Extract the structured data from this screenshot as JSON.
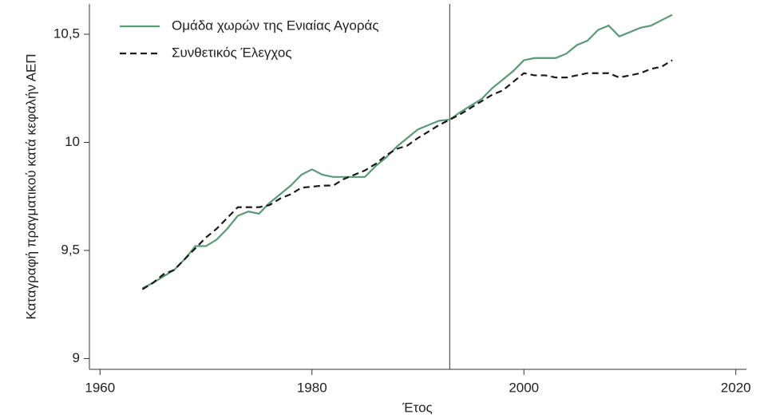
{
  "chart_data": {
    "type": "line",
    "ylabel": "Καταγραφή πραγματικού κατά κεφαλήν ΑΕΠ",
    "xlabel": "Έτος",
    "x": [
      1964,
      1965,
      1966,
      1967,
      1968,
      1969,
      1970,
      1971,
      1972,
      1973,
      1974,
      1975,
      1976,
      1977,
      1978,
      1979,
      1980,
      1981,
      1982,
      1983,
      1984,
      1985,
      1986,
      1987,
      1988,
      1989,
      1990,
      1991,
      1992,
      1993,
      1994,
      1995,
      1996,
      1997,
      1998,
      1999,
      2000,
      2001,
      2002,
      2003,
      2004,
      2005,
      2006,
      2007,
      2008,
      2009,
      2010,
      2011,
      2012,
      2013,
      2014
    ],
    "series": [
      {
        "name": "Ομάδα χωρών της Ενιαίας Αγοράς",
        "color": "#5a9a78",
        "style": "solid",
        "values": [
          9.325,
          9.35,
          9.38,
          9.41,
          9.46,
          9.52,
          9.52,
          9.55,
          9.6,
          9.66,
          9.68,
          9.67,
          9.72,
          9.76,
          9.8,
          9.85,
          9.875,
          9.85,
          9.84,
          9.84,
          9.84,
          9.84,
          9.89,
          9.93,
          9.98,
          10.02,
          10.06,
          10.08,
          10.1,
          10.105,
          10.14,
          10.17,
          10.2,
          10.25,
          10.29,
          10.33,
          10.38,
          10.39,
          10.39,
          10.39,
          10.41,
          10.45,
          10.47,
          10.52,
          10.54,
          10.49,
          10.51,
          10.53,
          10.54,
          10.565,
          10.59
        ]
      },
      {
        "name": "Συνθετικός Έλεγχος",
        "color": "#1a1a1a",
        "style": "dashed",
        "values": [
          9.32,
          9.35,
          9.39,
          9.41,
          9.46,
          9.51,
          9.56,
          9.6,
          9.65,
          9.7,
          9.7,
          9.7,
          9.71,
          9.74,
          9.76,
          9.79,
          9.795,
          9.8,
          9.8,
          9.83,
          9.85,
          9.87,
          9.9,
          9.94,
          9.97,
          9.985,
          10.02,
          10.05,
          10.08,
          10.105,
          10.13,
          10.16,
          10.19,
          10.22,
          10.24,
          10.28,
          10.32,
          10.31,
          10.31,
          10.3,
          10.3,
          10.31,
          10.32,
          10.32,
          10.32,
          10.3,
          10.31,
          10.32,
          10.34,
          10.35,
          10.38
        ]
      }
    ],
    "vline": 1993,
    "xlim": [
      1959,
      2021
    ],
    "xticks": [
      1960,
      1980,
      2000,
      2020
    ],
    "ylim": [
      8.95,
      10.64
    ],
    "yticks": [
      9,
      {
        "value": 9.5,
        "label": "9,5"
      },
      10,
      {
        "value": 10.5,
        "label": "10,5"
      }
    ],
    "grid": false,
    "legend": "upper left"
  }
}
